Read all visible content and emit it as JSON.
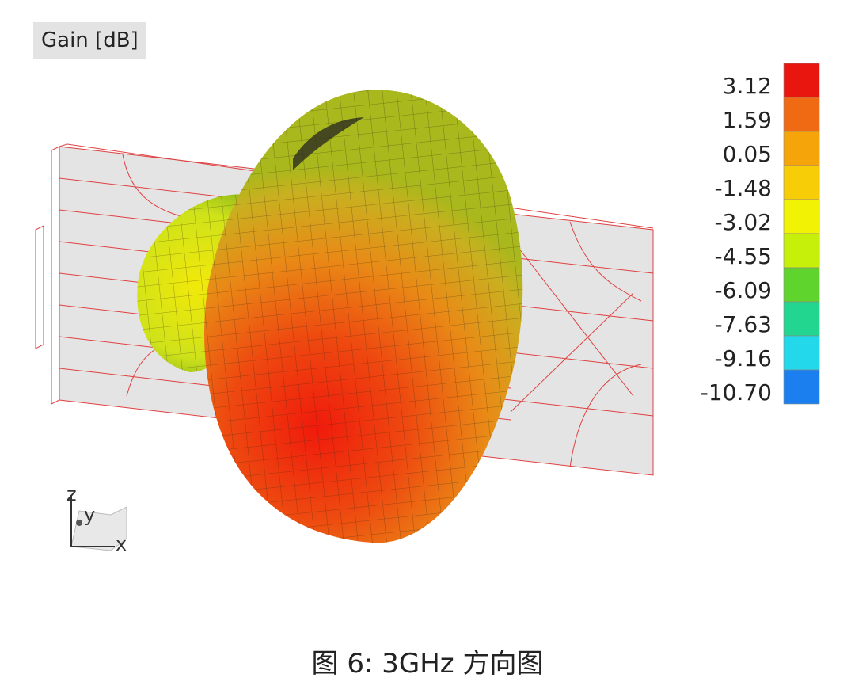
{
  "title": "Gain [dB]",
  "legend": {
    "labels": [
      "3.12",
      "1.59",
      "0.05",
      "-1.48",
      "-3.02",
      "-4.55",
      "-6.09",
      "-7.63",
      "-9.16",
      "-10.70"
    ],
    "colors": [
      "#e8160f",
      "#ef6a12",
      "#f5a40a",
      "#f7cd08",
      "#f2f205",
      "#c6f00a",
      "#5fd42c",
      "#22d690",
      "#22d8ea",
      "#1b7ff0"
    ]
  },
  "axes": {
    "z": "z",
    "y": "y",
    "x": "x"
  },
  "caption": "图 6: 3GHz 方向图"
}
